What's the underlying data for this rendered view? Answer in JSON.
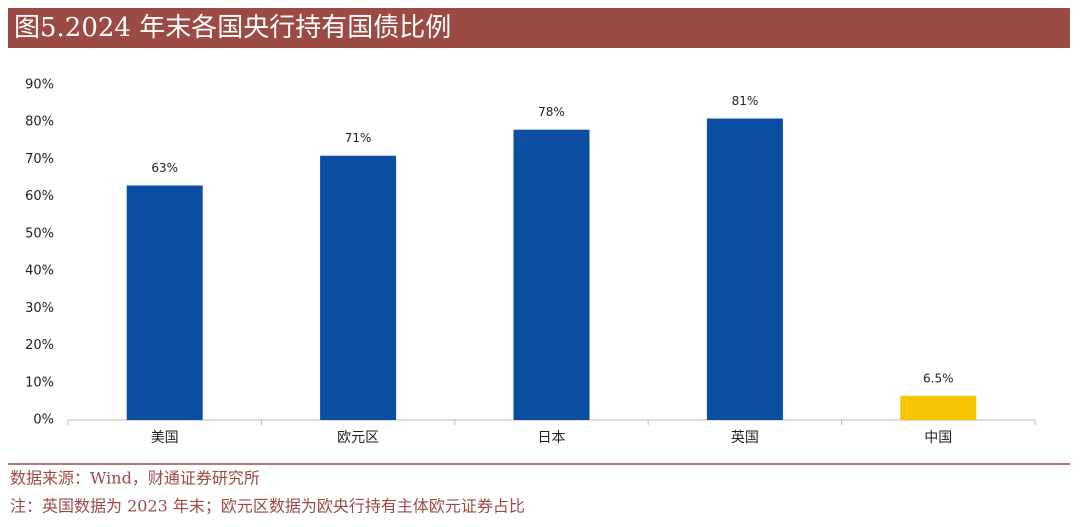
{
  "chart_data": {
    "type": "bar",
    "title": "图5.2024 年末各国央行持有国债比例",
    "categories": [
      "美国",
      "欧元区",
      "日本",
      "英国",
      "中国"
    ],
    "values": [
      63,
      71,
      78,
      81,
      6.5
    ],
    "value_labels": [
      "63%",
      "71%",
      "78%",
      "81%",
      "6.5%"
    ],
    "colors": [
      "#0b4ea2",
      "#0b4ea2",
      "#0b4ea2",
      "#0b4ea2",
      "#f6c400"
    ],
    "ylim": [
      0,
      90
    ],
    "yticks": [
      {
        "value": 0,
        "label": "0%"
      },
      {
        "value": 10,
        "label": "10%"
      },
      {
        "value": 20,
        "label": "20%"
      },
      {
        "value": 30,
        "label": "30%"
      },
      {
        "value": 40,
        "label": "40%"
      },
      {
        "value": 50,
        "label": "50%"
      },
      {
        "value": 60,
        "label": "60%"
      },
      {
        "value": 70,
        "label": "70%"
      },
      {
        "value": 80,
        "label": "80%"
      },
      {
        "value": 90,
        "label": "90%"
      }
    ],
    "grid": false,
    "source": "数据来源：Wind，财通证券研究所",
    "note": "注：英国数据为 2023 年末；欧元区数据为欧央行持有主体欧元证券占比"
  }
}
